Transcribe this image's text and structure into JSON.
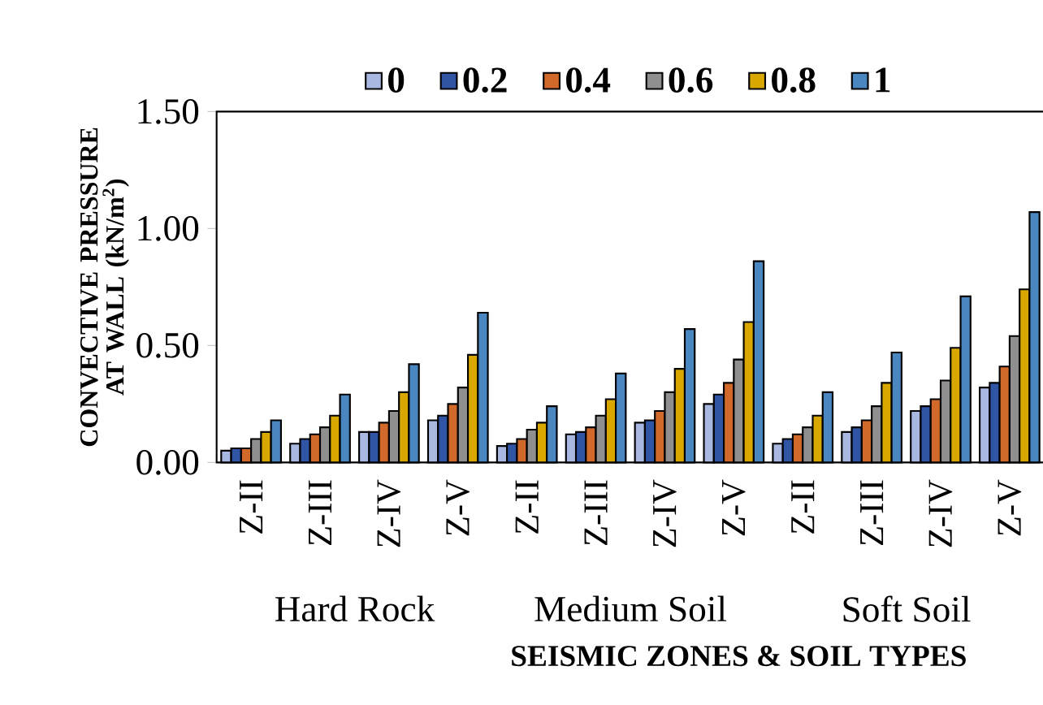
{
  "chart_data": {
    "type": "bar",
    "xlabel": "SEISMIC ZONES & SOIL TYPES",
    "ylabel": "CONVECTIVE PRESSURE AT WALL (kN/m$^{2}$)",
    "categories": [
      "Z-II",
      "Z-III",
      "Z-IV",
      "Z-V",
      "Z-II",
      "Z-III",
      "Z-IV",
      "Z-V",
      "Z-II",
      "Z-III",
      "Z-IV",
      "Z-V"
    ],
    "annotations": [
      "Hard Rock",
      "Medium Soil",
      "Soft Soil"
    ],
    "series": [
      {
        "name": "0",
        "color": "#a9b8e0",
        "values": [
          0.05,
          0.08,
          0.13,
          0.18,
          0.07,
          0.12,
          0.17,
          0.25,
          0.08,
          0.13,
          0.22,
          0.32
        ]
      },
      {
        "name": "0.2",
        "color": "#2f55a4",
        "values": [
          0.06,
          0.1,
          0.13,
          0.2,
          0.08,
          0.13,
          0.18,
          0.29,
          0.1,
          0.15,
          0.24,
          0.34
        ]
      },
      {
        "name": "0.4",
        "color": "#d0692a",
        "values": [
          0.06,
          0.12,
          0.17,
          0.25,
          0.1,
          0.15,
          0.22,
          0.34,
          0.12,
          0.18,
          0.27,
          0.41
        ]
      },
      {
        "name": "0.6",
        "color": "#8f8f8f",
        "values": [
          0.1,
          0.15,
          0.22,
          0.32,
          0.14,
          0.2,
          0.3,
          0.44,
          0.15,
          0.24,
          0.35,
          0.54
        ]
      },
      {
        "name": "0.8",
        "color": "#d8a800",
        "values": [
          0.13,
          0.2,
          0.3,
          0.46,
          0.17,
          0.27,
          0.4,
          0.6,
          0.2,
          0.34,
          0.49,
          0.74
        ]
      },
      {
        "name": "1",
        "color": "#4a86c0",
        "values": [
          0.18,
          0.29,
          0.42,
          0.64,
          0.24,
          0.38,
          0.57,
          0.86,
          0.3,
          0.47,
          0.71,
          1.07
        ]
      }
    ],
    "ylim": [
      0,
      1.5
    ],
    "yticks": [
      {
        "value": 0,
        "label": "0.00"
      },
      {
        "value": 0.5,
        "label": "0.50"
      },
      {
        "value": 1,
        "label": "1.00"
      },
      {
        "value": 1.5,
        "label": "1.50"
      }
    ],
    "legend": "top",
    "grid": false
  }
}
